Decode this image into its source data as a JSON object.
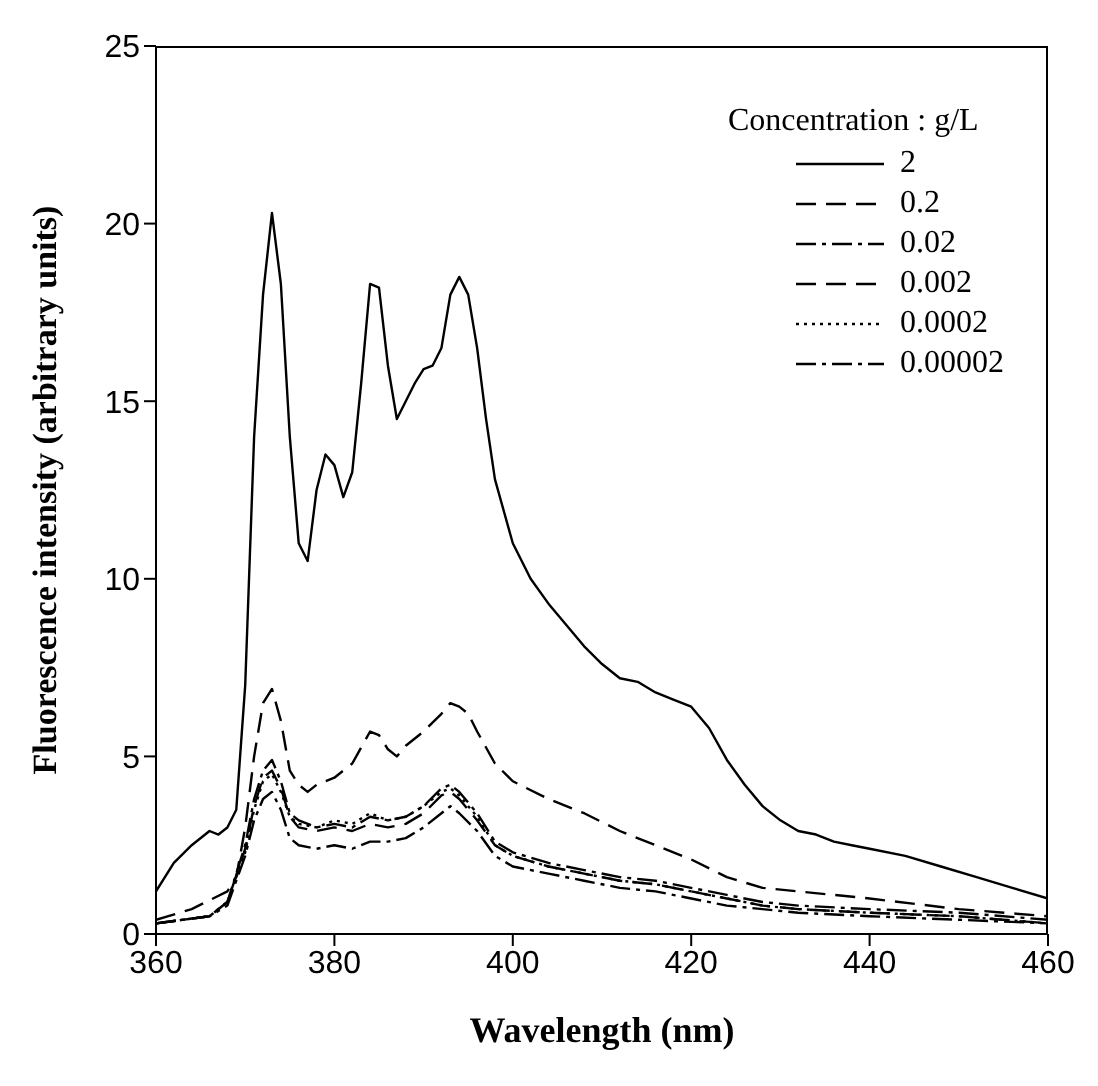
{
  "chart_data": {
    "type": "line",
    "xlabel": "Wavelength (nm)",
    "ylabel": "Fluorescence intensity (arbitrary units)",
    "legend_title": "Concentration : g/L",
    "legend": "top right",
    "grid": false,
    "marker": "none",
    "xlim": [
      360,
      460
    ],
    "ylim": [
      0,
      25
    ],
    "xticks": [
      360,
      380,
      400,
      420,
      440,
      460
    ],
    "yticks": [
      0,
      5,
      10,
      15,
      20,
      25
    ],
    "series": [
      {
        "name": "2",
        "color": "#000000",
        "line_style": "solid",
        "x": [
          360,
          362,
          364,
          366,
          367,
          368,
          369,
          370,
          371,
          372,
          373,
          374,
          375,
          376,
          377,
          378,
          379,
          380,
          381,
          382,
          383,
          384,
          385,
          386,
          387,
          388,
          389,
          390,
          391,
          392,
          393,
          394,
          395,
          396,
          397,
          398,
          400,
          402,
          404,
          406,
          408,
          410,
          412,
          414,
          416,
          418,
          420,
          422,
          424,
          426,
          428,
          430,
          432,
          434,
          436,
          438,
          440,
          444,
          448,
          452,
          456,
          460
        ],
        "values": [
          1.2,
          2.0,
          2.5,
          2.9,
          2.8,
          3.0,
          3.5,
          7,
          14,
          18,
          20.3,
          18.3,
          14,
          11,
          10.5,
          12.5,
          13.5,
          13.2,
          12.3,
          13,
          15.5,
          18.3,
          18.2,
          16,
          14.5,
          15,
          15.5,
          15.9,
          16,
          16.5,
          18,
          18.5,
          18,
          16.5,
          14.5,
          12.8,
          11,
          10,
          9.3,
          8.7,
          8.1,
          7.6,
          7.2,
          7.1,
          6.8,
          6.6,
          6.4,
          5.8,
          4.9,
          4.2,
          3.6,
          3.2,
          2.9,
          2.8,
          2.6,
          2.5,
          2.4,
          2.2,
          1.9,
          1.6,
          1.3,
          1.0
        ]
      },
      {
        "name": "0.2",
        "color": "#000000",
        "line_style": "dashed",
        "x": [
          360,
          364,
          368,
          369,
          370,
          371,
          372,
          373,
          374,
          375,
          376,
          377,
          378,
          380,
          382,
          384,
          385,
          386,
          387,
          388,
          390,
          392,
          393,
          394,
          395,
          396,
          398,
          400,
          404,
          408,
          412,
          416,
          420,
          424,
          428,
          432,
          440,
          450,
          460
        ],
        "values": [
          0.4,
          0.7,
          1.2,
          1.6,
          3,
          5,
          6.5,
          6.9,
          6,
          4.6,
          4.2,
          4.0,
          4.2,
          4.4,
          4.8,
          5.7,
          5.6,
          5.2,
          5.0,
          5.3,
          5.7,
          6.2,
          6.5,
          6.4,
          6.2,
          5.7,
          4.8,
          4.3,
          3.8,
          3.4,
          2.9,
          2.5,
          2.1,
          1.6,
          1.3,
          1.2,
          1.0,
          0.7,
          0.5
        ]
      },
      {
        "name": "0.02",
        "color": "#000000",
        "line_style": "dashdot",
        "x": [
          360,
          366,
          368,
          370,
          371,
          372,
          373,
          374,
          375,
          376,
          378,
          380,
          382,
          384,
          386,
          388,
          390,
          392,
          393,
          394,
          396,
          398,
          400,
          404,
          408,
          412,
          416,
          420,
          424,
          428,
          432,
          440,
          450,
          460
        ],
        "values": [
          0.3,
          0.5,
          0.9,
          2.5,
          3.8,
          4.6,
          4.9,
          4.3,
          3.4,
          3.2,
          3.0,
          3.1,
          3.0,
          3.3,
          3.2,
          3.3,
          3.6,
          4.1,
          4.2,
          4.0,
          3.4,
          2.6,
          2.3,
          2.0,
          1.8,
          1.6,
          1.5,
          1.3,
          1.1,
          0.9,
          0.8,
          0.7,
          0.6,
          0.4
        ]
      },
      {
        "name": "0.002",
        "color": "#000000",
        "line_style": "dashed",
        "x": [
          360,
          366,
          368,
          370,
          371,
          372,
          373,
          374,
          375,
          376,
          378,
          380,
          382,
          384,
          386,
          388,
          390,
          392,
          393,
          394,
          396,
          398,
          400,
          404,
          408,
          412,
          416,
          420,
          424,
          428,
          432,
          440,
          450,
          460
        ],
        "values": [
          0.3,
          0.5,
          0.9,
          2.4,
          3.6,
          4.4,
          4.6,
          4.1,
          3.3,
          3.0,
          2.9,
          3.0,
          2.9,
          3.1,
          3.0,
          3.1,
          3.4,
          3.9,
          4.0,
          3.8,
          3.2,
          2.5,
          2.2,
          1.9,
          1.7,
          1.5,
          1.4,
          1.2,
          1.0,
          0.8,
          0.7,
          0.6,
          0.5,
          0.3
        ]
      },
      {
        "name": "0.0002",
        "color": "#000000",
        "line_style": "dotted",
        "x": [
          360,
          366,
          368,
          370,
          371,
          372,
          373,
          374,
          375,
          376,
          378,
          380,
          382,
          384,
          386,
          388,
          390,
          392,
          393,
          394,
          396,
          398,
          400,
          404,
          408,
          412,
          416,
          420,
          424,
          428,
          432,
          440,
          450,
          460
        ],
        "values": [
          0.3,
          0.5,
          0.9,
          2.3,
          3.5,
          4.3,
          4.5,
          4.0,
          3.3,
          3.1,
          3.0,
          3.2,
          3.1,
          3.4,
          3.2,
          3.3,
          3.6,
          4.0,
          4.1,
          3.9,
          3.3,
          2.5,
          2.2,
          1.9,
          1.7,
          1.5,
          1.4,
          1.2,
          1.0,
          0.8,
          0.7,
          0.6,
          0.5,
          0.3
        ]
      },
      {
        "name": "0.00002",
        "color": "#000000",
        "line_style": "dashdot",
        "x": [
          360,
          366,
          368,
          370,
          371,
          372,
          373,
          374,
          375,
          376,
          378,
          380,
          382,
          384,
          386,
          388,
          390,
          392,
          393,
          394,
          396,
          398,
          400,
          404,
          408,
          412,
          416,
          420,
          424,
          428,
          432,
          440,
          450,
          460
        ],
        "values": [
          0.3,
          0.5,
          0.8,
          2.2,
          3.2,
          3.8,
          4.0,
          3.5,
          2.7,
          2.5,
          2.4,
          2.5,
          2.4,
          2.6,
          2.6,
          2.7,
          3.0,
          3.4,
          3.6,
          3.4,
          2.9,
          2.2,
          1.9,
          1.7,
          1.5,
          1.3,
          1.2,
          1.0,
          0.8,
          0.7,
          0.6,
          0.5,
          0.4,
          0.3
        ]
      }
    ]
  }
}
